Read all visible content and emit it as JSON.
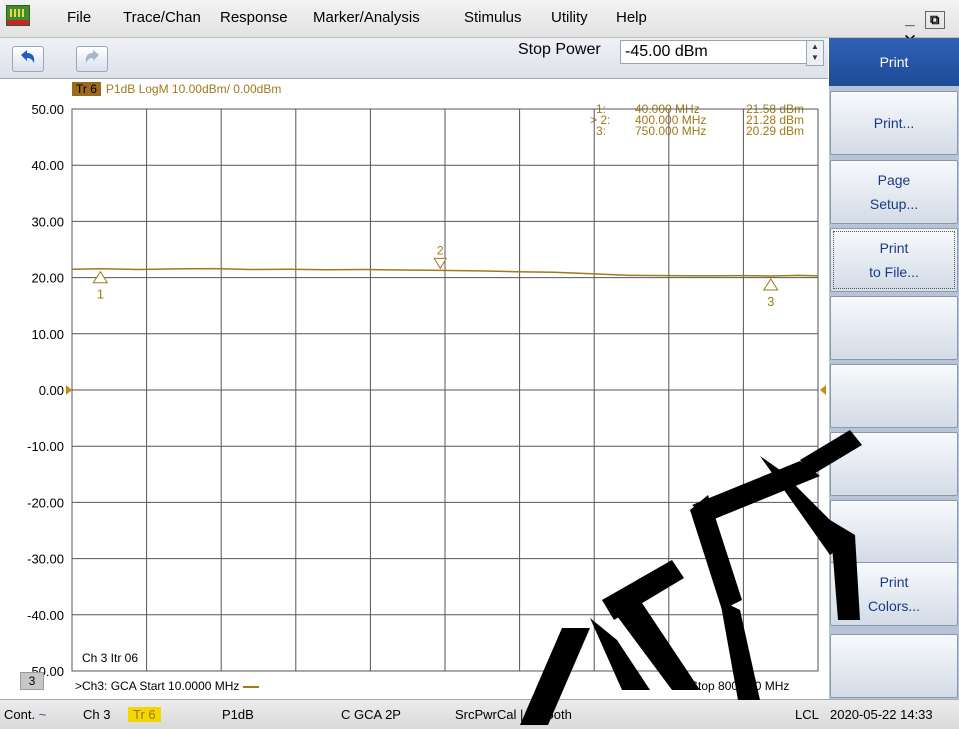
{
  "menu": [
    "File",
    "Trace/Chan",
    "Response",
    "Marker/Analysis",
    "Stimulus",
    "Utility",
    "Help"
  ],
  "window_buttons": [
    "_",
    "⧉",
    "✕"
  ],
  "toolbar": {
    "undo_icon": "undo-arrow",
    "redo_icon": "redo-arrow",
    "stop_power_label": "Stop Power",
    "stop_power_value": "-45.00 dBm"
  },
  "trace": {
    "tag": "Tr 6",
    "description": "P1dB LogM 10.00dBm/  0.00dBm",
    "color": "#a07a18"
  },
  "markers": [
    {
      "label": "1:",
      "freq": "40.000 MHz",
      "value": "21.58 dBm"
    },
    {
      "label": "> 2:",
      "freq": "400.000 MHz",
      "value": "21.28 dBm"
    },
    {
      "label": "3:",
      "freq": "750.000 MHz",
      "value": "20.29 dBm"
    }
  ],
  "channel": {
    "label": "Ch 3  Itr 06",
    "number": "3",
    "start_text": ">Ch3: GCA  Start  10.0000 MHz",
    "stop_text": "Stop  800.000 MHz"
  },
  "chart_data": {
    "type": "line",
    "y_ticks": [
      "50.00",
      "40.00",
      "30.00",
      "20.00",
      "10.00",
      "0.00",
      "-10.00",
      "-20.00",
      "-30.00",
      "-40.00",
      "-50.00"
    ],
    "ylim": [
      -50,
      50
    ],
    "xlim": [
      10,
      800
    ],
    "reference_level": 0,
    "grid": true,
    "series": [
      {
        "color": "#a07a18",
        "x": [
          10,
          40,
          80,
          120,
          160,
          200,
          240,
          280,
          320,
          360,
          400,
          440,
          480,
          520,
          560,
          600,
          640,
          680,
          720,
          750,
          780,
          800
        ],
        "y": [
          21.5,
          21.58,
          21.45,
          21.55,
          21.6,
          21.45,
          21.5,
          21.4,
          21.45,
          21.35,
          21.28,
          21.2,
          21.05,
          20.95,
          20.7,
          20.4,
          20.35,
          20.3,
          20.35,
          20.29,
          20.4,
          20.3
        ]
      }
    ],
    "marker_points": [
      {
        "id": "1",
        "x": 40,
        "y": 21.58
      },
      {
        "id": "2",
        "x": 400,
        "y": 21.28
      },
      {
        "id": "3",
        "x": 750,
        "y": 20.29
      }
    ]
  },
  "statusbar": {
    "mode": "Cont.",
    "channel": "Ch 3",
    "trace": "Tr 6",
    "measurement": "P1dB",
    "cal": "C  GCA 2P",
    "src": "SrcPwrCal | Smooth",
    "lcl": "LCL",
    "datetime": "2020-05-22 14:33"
  },
  "softkeys": {
    "title": "Print",
    "buttons": [
      {
        "lines": [
          "Print..."
        ]
      },
      {
        "lines": [
          "Page",
          "Setup..."
        ]
      },
      {
        "lines": [
          "Print",
          "to File..."
        ]
      },
      {
        "lines": []
      },
      {
        "lines": []
      },
      {
        "lines": []
      },
      {
        "lines": []
      },
      {
        "lines": [
          "Print",
          "Colors..."
        ]
      },
      {
        "lines": []
      }
    ]
  },
  "watermark": {
    "color": "#000000"
  }
}
